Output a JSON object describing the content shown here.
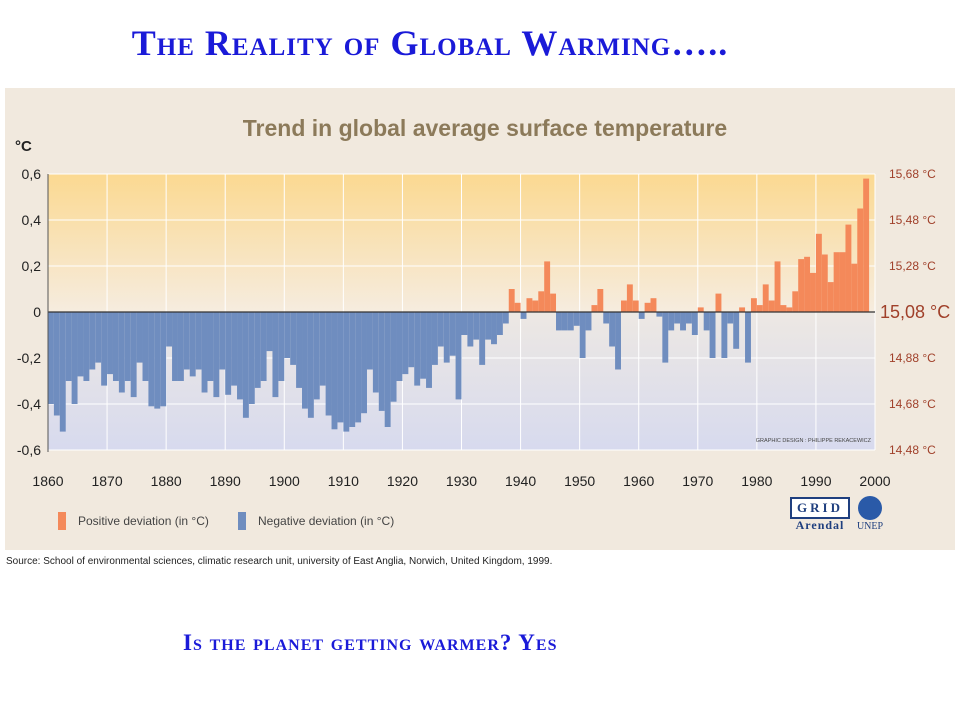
{
  "slide_title": "The Reality of Global Warming…..",
  "question": "Is the planet getting warmer?  Yes",
  "source": "Source: School of environmental sciences, climatic research unit, university of East Anglia, Norwich, United Kingdom, 1999.",
  "credit": "GRAPHIC DESIGN : PHILIPPE REKACEWICZ",
  "logos": {
    "grid": "GRID",
    "arendal": "Arendal",
    "unep": "UNEP"
  },
  "colors": {
    "positive": "#f4895a",
    "negative": "#6f8dbf",
    "title": "#1a1ad8",
    "chart_title": "#8c7a5a"
  },
  "chart_data": {
    "type": "bar",
    "title": "Trend in global average surface temperature",
    "ylabel": "°C",
    "ylim": [
      -0.6,
      0.6
    ],
    "xlim": [
      1860,
      2000
    ],
    "y_ticks": [
      "0,6",
      "0,4",
      "0,2",
      "0",
      "-0,2",
      "-0,4",
      "-0,6"
    ],
    "y_tick_values": [
      0.6,
      0.4,
      0.2,
      0,
      -0.2,
      -0.4,
      -0.6
    ],
    "right_ticks": [
      "15,68 °C",
      "15,48 °C",
      "15,28 °C",
      "15,08 °C",
      "14,88 °C",
      "14,68 °C",
      "14,48 °C"
    ],
    "x_ticks": [
      "1860",
      "1870",
      "1880",
      "1890",
      "1900",
      "1910",
      "1920",
      "1930",
      "1940",
      "1950",
      "1960",
      "1970",
      "1980",
      "1990",
      "2000"
    ],
    "legend": [
      "Positive deviation (in °C)",
      "Negative deviation (in °C)"
    ],
    "grid": true,
    "years": [
      1860,
      1861,
      1862,
      1863,
      1864,
      1865,
      1866,
      1867,
      1868,
      1869,
      1870,
      1871,
      1872,
      1873,
      1874,
      1875,
      1876,
      1877,
      1878,
      1879,
      1880,
      1881,
      1882,
      1883,
      1884,
      1885,
      1886,
      1887,
      1888,
      1889,
      1890,
      1891,
      1892,
      1893,
      1894,
      1895,
      1896,
      1897,
      1898,
      1899,
      1900,
      1901,
      1902,
      1903,
      1904,
      1905,
      1906,
      1907,
      1908,
      1909,
      1910,
      1911,
      1912,
      1913,
      1914,
      1915,
      1916,
      1917,
      1918,
      1919,
      1920,
      1921,
      1922,
      1923,
      1924,
      1925,
      1926,
      1927,
      1928,
      1929,
      1930,
      1931,
      1932,
      1933,
      1934,
      1935,
      1936,
      1937,
      1938,
      1939,
      1940,
      1941,
      1942,
      1943,
      1944,
      1945,
      1946,
      1947,
      1948,
      1949,
      1950,
      1951,
      1952,
      1953,
      1954,
      1955,
      1956,
      1957,
      1958,
      1959,
      1960,
      1961,
      1962,
      1963,
      1964,
      1965,
      1966,
      1967,
      1968,
      1969,
      1970,
      1971,
      1972,
      1973,
      1974,
      1975,
      1976,
      1977,
      1978,
      1979,
      1980,
      1981,
      1982,
      1983,
      1984,
      1985,
      1986,
      1987,
      1988,
      1989,
      1990,
      1991,
      1992,
      1993,
      1994,
      1995,
      1996,
      1997,
      1998
    ],
    "values": [
      -0.4,
      -0.45,
      -0.52,
      -0.3,
      -0.4,
      -0.28,
      -0.3,
      -0.25,
      -0.22,
      -0.32,
      -0.27,
      -0.3,
      -0.35,
      -0.3,
      -0.37,
      -0.22,
      -0.3,
      -0.41,
      -0.42,
      -0.41,
      -0.15,
      -0.3,
      -0.3,
      -0.25,
      -0.28,
      -0.25,
      -0.35,
      -0.3,
      -0.37,
      -0.25,
      -0.36,
      -0.32,
      -0.38,
      -0.46,
      -0.4,
      -0.33,
      -0.3,
      -0.17,
      -0.37,
      -0.3,
      -0.2,
      -0.23,
      -0.33,
      -0.42,
      -0.46,
      -0.38,
      -0.32,
      -0.45,
      -0.51,
      -0.48,
      -0.52,
      -0.5,
      -0.48,
      -0.44,
      -0.25,
      -0.35,
      -0.43,
      -0.5,
      -0.39,
      -0.3,
      -0.27,
      -0.24,
      -0.32,
      -0.29,
      -0.33,
      -0.23,
      -0.15,
      -0.22,
      -0.19,
      -0.38,
      -0.1,
      -0.15,
      -0.12,
      -0.23,
      -0.12,
      -0.14,
      -0.1,
      -0.05,
      0.1,
      0.04,
      -0.03,
      0.06,
      0.05,
      0.09,
      0.22,
      0.08,
      -0.08,
      -0.08,
      -0.08,
      -0.06,
      -0.2,
      -0.08,
      0.03,
      0.1,
      -0.05,
      -0.15,
      -0.25,
      0.05,
      0.12,
      0.05,
      -0.03,
      0.04,
      0.06,
      -0.02,
      -0.22,
      -0.08,
      -0.05,
      -0.08,
      -0.05,
      -0.1,
      0.02,
      -0.08,
      -0.2,
      0.08,
      -0.2,
      -0.05,
      -0.16,
      0.02,
      -0.22,
      0.06,
      0.03,
      0.12,
      0.05,
      0.22,
      0.03,
      0.02,
      0.09,
      0.23,
      0.24,
      0.17,
      0.34,
      0.25,
      0.13,
      0.26,
      0.26,
      0.38,
      0.21,
      0.45,
      0.58
    ]
  }
}
